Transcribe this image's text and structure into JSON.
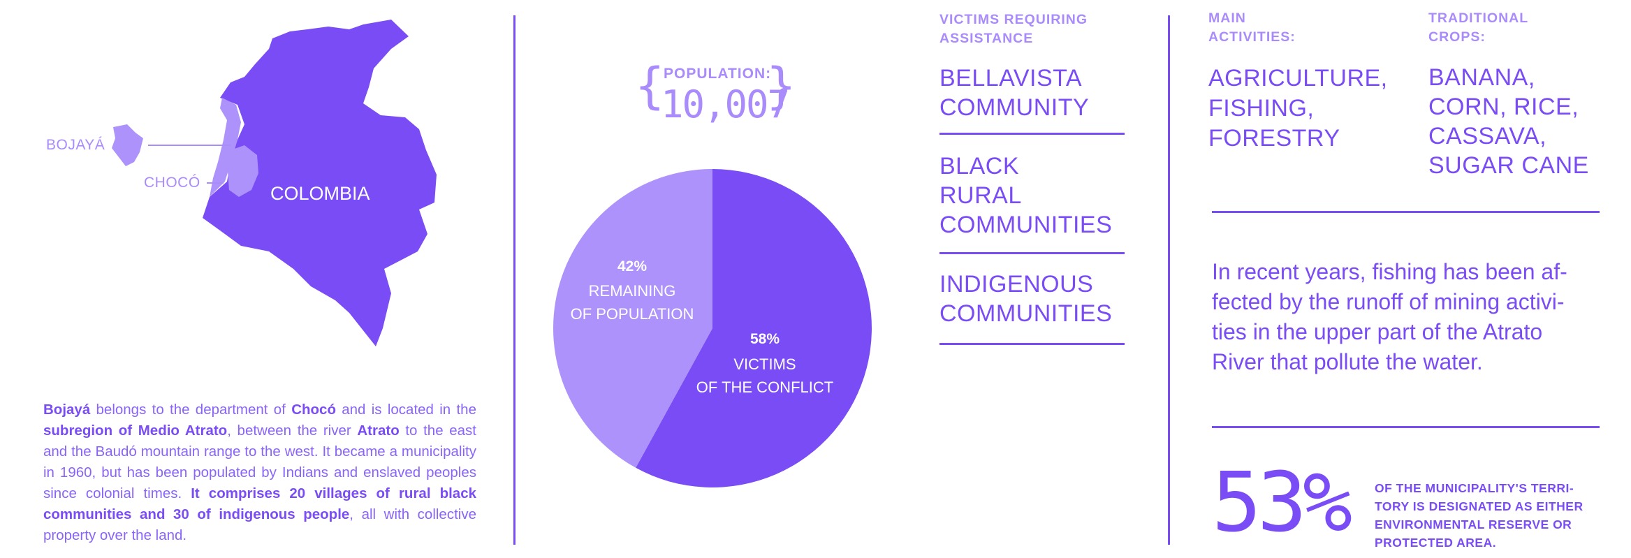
{
  "colors": {
    "primary": "#7A4CF5",
    "light": "#A98BFB",
    "text": "#8A64F7"
  },
  "map": {
    "label_bojaya": "BOJAYÁ",
    "label_choco": "CHOCÓ",
    "label_country": "COLOMBIA"
  },
  "description": {
    "p1": "Bojayá",
    "p2": " belongs to the department of ",
    "p3": "Chocó",
    "p4": " and is located in the ",
    "p5": "subregion of Medio Atrato",
    "p6": ", between the river ",
    "p7": "Atrato",
    "p8": " to the east and the Baudó mountain range to the west. It became a municipality in 1960, but has been populated by Indians and enslaved peoples since colonial times. ",
    "p9": "It comprises 20 villages of rural black communities and 30 of indigenous people",
    "p10": ", all with collective property over the land."
  },
  "population": {
    "label": "POPULATION:",
    "value": "10,007"
  },
  "chart_data": {
    "type": "pie",
    "slices": [
      {
        "percent": 58,
        "label_pct": "58%",
        "label_l1": "VICTIMS",
        "label_l2": "OF THE CONFLICT",
        "color": "#7A4CF5"
      },
      {
        "percent": 42,
        "label_pct": "42%",
        "label_l1": "REMAINING",
        "label_l2": "OF POPULATION",
        "color": "#AD92FB"
      }
    ]
  },
  "victims": {
    "heading_l1": "VICTIMS REQUIRING",
    "heading_l2": "ASSISTANCE",
    "items": [
      {
        "l1": "BELLAVISTA",
        "l2": "COMMUNITY"
      },
      {
        "l1": "BLACK",
        "l2": "RURAL",
        "l3": "COMMUNITIES"
      },
      {
        "l1": "INDIGENOUS",
        "l2": "COMMUNITIES"
      }
    ]
  },
  "activities": {
    "heading_l1": "MAIN",
    "heading_l2": "ACTIVITIES:",
    "items": [
      "AGRICULTURE,",
      "FISHING,",
      "FORESTRY"
    ]
  },
  "crops": {
    "heading_l1": "TRADITIONAL",
    "heading_l2": "CROPS:",
    "items": [
      "BANANA,",
      "CORN, RICE,",
      "CASSAVA,",
      "SUGAR CANE"
    ]
  },
  "paragraph": {
    "l1": "In recent years, fishing has been af-",
    "l2": "fected by the runoff of mining activi-",
    "l3": "ties in the upper part of the Atrato",
    "l4": "River that pollute the water."
  },
  "stat": {
    "value": "53%",
    "l1": "OF THE MUNICIPALITY'S TERRI-",
    "l2": "TORY IS DESIGNATED AS EITHER",
    "l3": "ENVIRONMENTAL RESERVE OR",
    "l4": "PROTECTED AREA."
  }
}
